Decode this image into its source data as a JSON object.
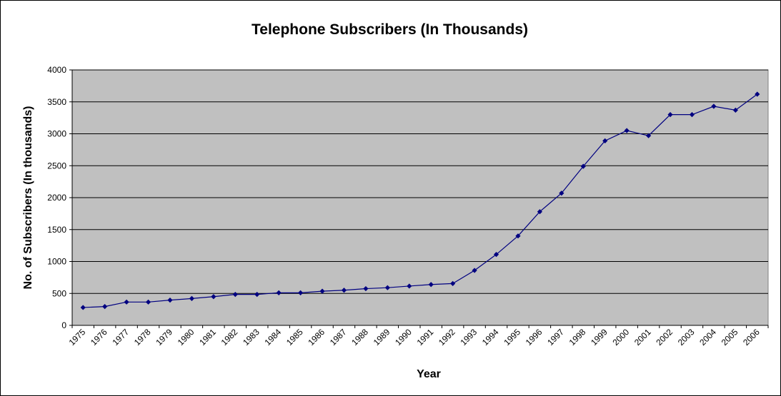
{
  "chart_data": {
    "type": "line",
    "title": "Telephone Subscribers (In Thousands)",
    "xlabel": "Year",
    "ylabel": "No. of Subscribers (In thousands)",
    "ylim": [
      0,
      4000
    ],
    "yticks": [
      0,
      500,
      1000,
      1500,
      2000,
      2500,
      3000,
      3500,
      4000
    ],
    "grid": true,
    "legend": "none",
    "colors": {
      "plot_background": "#c0c0c0",
      "line": "#000080",
      "marker": "#000080",
      "gridline": "#000000"
    },
    "categories": [
      "1975",
      "1976",
      "1977",
      "1978",
      "1979",
      "1980",
      "1981",
      "1982",
      "1983",
      "1984",
      "1985",
      "1986",
      "1987",
      "1988",
      "1989",
      "1990",
      "1991",
      "1992",
      "1993",
      "1994",
      "1995",
      "1996",
      "1997",
      "1998",
      "1999",
      "2000",
      "2001",
      "2002",
      "2003",
      "2004",
      "2005",
      "2006"
    ],
    "series": [
      {
        "values": [
          280,
          295,
          365,
          365,
          395,
          420,
          450,
          485,
          485,
          510,
          510,
          535,
          550,
          575,
          590,
          615,
          640,
          655,
          860,
          1110,
          1400,
          1780,
          2070,
          2490,
          2890,
          3050,
          2970,
          3300,
          3300,
          3430,
          3370,
          3620
        ]
      }
    ]
  }
}
